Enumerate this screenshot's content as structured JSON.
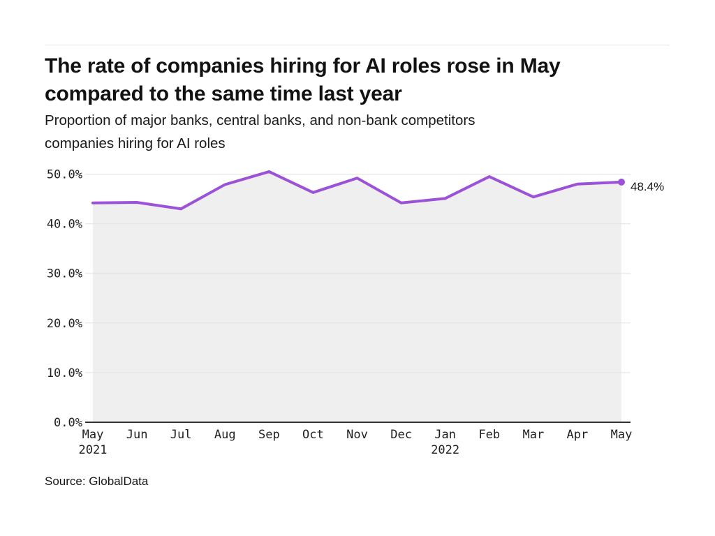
{
  "header": {
    "title_lines": [
      "The rate of companies hiring for AI roles rose in May",
      "compared to the same time last year"
    ],
    "subtitle_lines": [
      "Proportion of major banks, central banks, and non-bank competitors",
      "companies hiring for AI roles"
    ]
  },
  "chart_data": {
    "type": "line",
    "title": "The rate of companies hiring for AI roles rose in May compared to the same time last year",
    "subtitle": "Proportion of major banks, central banks, and non-bank competitors companies hiring for AI roles",
    "x": [
      "May 2021",
      "Jun 2021",
      "Jul 2021",
      "Aug 2021",
      "Sep 2021",
      "Oct 2021",
      "Nov 2021",
      "Dec 2021",
      "Jan 2022",
      "Feb 2022",
      "Mar 2022",
      "Apr 2022",
      "May 2022"
    ],
    "x_tick_labels": [
      {
        "month": "May",
        "year": "2021"
      },
      {
        "month": "Jun",
        "year": ""
      },
      {
        "month": "Jul",
        "year": ""
      },
      {
        "month": "Aug",
        "year": ""
      },
      {
        "month": "Sep",
        "year": ""
      },
      {
        "month": "Oct",
        "year": ""
      },
      {
        "month": "Nov",
        "year": ""
      },
      {
        "month": "Dec",
        "year": ""
      },
      {
        "month": "Jan",
        "year": "2022"
      },
      {
        "month": "Feb",
        "year": ""
      },
      {
        "month": "Mar",
        "year": ""
      },
      {
        "month": "Apr",
        "year": ""
      },
      {
        "month": "May",
        "year": ""
      }
    ],
    "values": [
      44.2,
      44.3,
      43.0,
      47.9,
      50.5,
      46.3,
      49.2,
      44.2,
      45.1,
      49.5,
      45.4,
      48.0,
      48.4
    ],
    "ylim": [
      0,
      50
    ],
    "yticks": [
      0,
      10,
      20,
      30,
      40,
      50
    ],
    "ytick_suffix": "%",
    "grid": true,
    "legend": "none",
    "end_label": "48.4%",
    "colors": {
      "line": "#9b51d8",
      "marker": "#9b51d8",
      "area_fill": "#efefef",
      "gridline": "#e2e2e2",
      "axis": "#333333"
    }
  },
  "footer": {
    "source": "Source: GlobalData"
  }
}
